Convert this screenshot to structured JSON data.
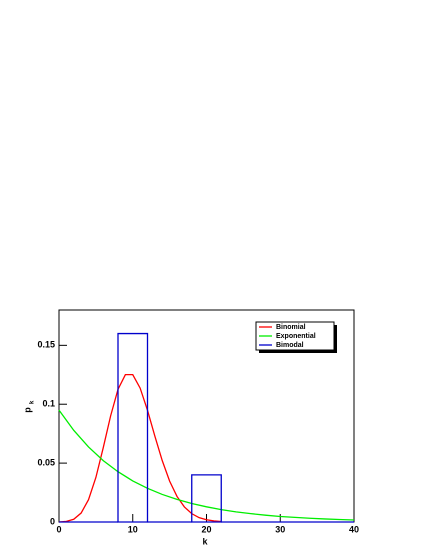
{
  "chart_data": {
    "type": "line",
    "x_label": "k",
    "y_label": "p",
    "y_label_sub": "k",
    "xlim": [
      0,
      40
    ],
    "xticks": [
      0,
      10,
      20,
      30,
      40
    ],
    "ylim": [
      0,
      0.18
    ],
    "yticks": [
      0,
      0.05,
      0.1,
      0.15
    ],
    "legend": "top-right",
    "series": [
      {
        "name": "Binomial",
        "color": "#ff0000",
        "kind": "line",
        "x": [
          0,
          1,
          2,
          3,
          4,
          5,
          6,
          7,
          8,
          9,
          10,
          11,
          12,
          13,
          14,
          15,
          16,
          17,
          18,
          19,
          20,
          21,
          22
        ],
        "values": [
          0.0,
          0.0005,
          0.0023,
          0.0076,
          0.0189,
          0.0378,
          0.0631,
          0.0901,
          0.1126,
          0.1251,
          0.1251,
          0.1137,
          0.0948,
          0.0729,
          0.0521,
          0.0347,
          0.0217,
          0.0128,
          0.0071,
          0.0037,
          0.0019,
          0.0009,
          0.0004
        ]
      },
      {
        "name": "Exponential",
        "color": "#00ee00",
        "kind": "line",
        "x": [
          0,
          2,
          4,
          6,
          8,
          10,
          12,
          14,
          16,
          18,
          20,
          22,
          24,
          26,
          28,
          30,
          32,
          34,
          36,
          38,
          40
        ],
        "values": [
          0.095,
          0.0778,
          0.0637,
          0.0521,
          0.0427,
          0.0349,
          0.0286,
          0.0234,
          0.0192,
          0.0157,
          0.0129,
          0.0105,
          0.0086,
          0.0071,
          0.0058,
          0.0047,
          0.0039,
          0.0032,
          0.0026,
          0.0021,
          0.0017
        ]
      },
      {
        "name": "Bimodal",
        "color": "#0000cc",
        "kind": "hist",
        "bins": [
          0,
          8,
          12,
          18,
          22,
          40
        ],
        "values": [
          0,
          0.16,
          0,
          0.04,
          0
        ]
      }
    ]
  }
}
